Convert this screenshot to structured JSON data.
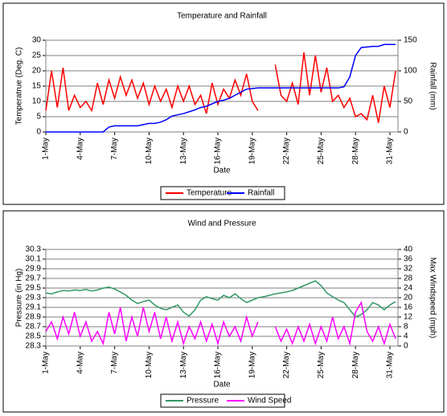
{
  "chart_data": [
    {
      "type": "line",
      "title": "Temperature and Rainfall",
      "x_label": "Date",
      "y_label": "Temperatrue (Deg. C)",
      "y2_label": "Rainfall (mm)",
      "x": [
        1,
        1.5,
        2,
        2.5,
        3,
        3.5,
        4,
        4.5,
        5,
        5.5,
        6,
        6.5,
        7,
        7.5,
        8,
        8.5,
        9,
        9.5,
        10,
        10.5,
        11,
        11.5,
        12,
        12.5,
        13,
        13.5,
        14,
        14.5,
        15,
        15.5,
        16,
        16.5,
        17,
        17.5,
        18,
        18.5,
        19,
        19.5,
        20,
        20.5,
        21,
        21.5,
        22,
        22.5,
        23,
        23.5,
        24,
        24.5,
        25,
        25.5,
        26,
        26.5,
        27,
        27.5,
        28,
        28.5,
        29,
        29.5,
        30,
        30.5,
        31,
        31.5
      ],
      "series": [
        {
          "name": "Temperature",
          "color": "#ff0000",
          "axis": "y",
          "values": [
            7,
            20,
            8,
            21,
            7,
            12,
            8,
            10,
            7,
            16,
            9,
            17,
            11,
            18,
            12,
            17,
            11,
            16,
            9,
            15,
            10,
            14,
            8,
            15,
            10,
            15,
            9,
            12,
            6,
            16,
            9,
            14,
            11,
            17,
            12,
            19,
            10,
            7,
            null,
            null,
            22,
            12,
            10,
            16,
            9,
            26,
            12,
            25,
            13,
            21,
            10,
            12,
            8,
            11,
            5,
            6,
            4,
            12,
            3,
            15,
            8,
            20
          ]
        },
        {
          "name": "Rainfall",
          "color": "#0000ff",
          "axis": "y2",
          "values": [
            0,
            0,
            0,
            0,
            0,
            0,
            0,
            0,
            0,
            0,
            0,
            8,
            10,
            10,
            10,
            10,
            10,
            12,
            14,
            14,
            16,
            20,
            26,
            28,
            30,
            33,
            36,
            40,
            42,
            46,
            50,
            52,
            55,
            60,
            65,
            70,
            71,
            72,
            72,
            72,
            72,
            72,
            72,
            72,
            72,
            72,
            72,
            72,
            72,
            72,
            72,
            72,
            74,
            90,
            125,
            138,
            139,
            140,
            140,
            143,
            143,
            143
          ]
        }
      ],
      "xlim": [
        1,
        31.7
      ],
      "xticks": [
        {
          "value": 1,
          "label": "1-May"
        },
        {
          "value": 4,
          "label": "4-May"
        },
        {
          "value": 7,
          "label": "7-May"
        },
        {
          "value": 10,
          "label": "10-May"
        },
        {
          "value": 13,
          "label": "13-May"
        },
        {
          "value": 16,
          "label": "16-May"
        },
        {
          "value": 19,
          "label": "19-May"
        },
        {
          "value": 22,
          "label": "22-May"
        },
        {
          "value": 25,
          "label": "25-May"
        },
        {
          "value": 28,
          "label": "28-May"
        },
        {
          "value": 31,
          "label": "31-May"
        }
      ],
      "ylim": [
        0,
        30
      ],
      "yticks": [
        0,
        5,
        10,
        15,
        20,
        25,
        30
      ],
      "y2lim": [
        0,
        150
      ],
      "y2ticks": [
        0,
        50,
        100,
        150
      ],
      "grid": true,
      "legend": "bottom"
    },
    {
      "type": "line",
      "title": "Wind and Pressure",
      "x_label": "Date",
      "y_label": "Pressure (in Hg)",
      "y2_label": "Max Windspeed (mph)",
      "x": [
        1,
        1.5,
        2,
        2.5,
        3,
        3.5,
        4,
        4.5,
        5,
        5.5,
        6,
        6.5,
        7,
        7.5,
        8,
        8.5,
        9,
        9.5,
        10,
        10.5,
        11,
        11.5,
        12,
        12.5,
        13,
        13.5,
        14,
        14.5,
        15,
        15.5,
        16,
        16.5,
        17,
        17.5,
        18,
        18.5,
        19,
        19.5,
        20,
        20.5,
        21,
        21.5,
        22,
        22.5,
        23,
        23.5,
        24,
        24.5,
        25,
        25.5,
        26,
        26.5,
        27,
        27.5,
        28,
        28.5,
        29,
        29.5,
        30,
        30.5,
        31,
        31.5
      ],
      "series": [
        {
          "name": "Pressure",
          "color": "#339966",
          "axis": "y",
          "values": [
            29.4,
            29.38,
            29.42,
            29.45,
            29.44,
            29.46,
            29.45,
            29.47,
            29.44,
            29.46,
            29.5,
            29.52,
            29.48,
            29.42,
            29.35,
            29.25,
            29.18,
            29.22,
            29.25,
            29.15,
            29.08,
            29.05,
            29.1,
            29.15,
            29.0,
            28.92,
            29.05,
            29.25,
            29.32,
            29.28,
            29.25,
            29.35,
            29.3,
            29.38,
            29.28,
            29.2,
            29.25,
            29.3,
            29.32,
            29.35,
            29.38,
            29.4,
            29.42,
            29.45,
            29.5,
            29.55,
            29.6,
            29.65,
            29.55,
            29.4,
            29.32,
            29.25,
            29.2,
            29.05,
            28.9,
            28.95,
            29.05,
            29.2,
            29.15,
            29.05,
            29.15,
            29.22
          ]
        },
        {
          "name": "Wind Speed",
          "color": "#ff00ff",
          "axis": "y2",
          "values": [
            6,
            10,
            3,
            12,
            5,
            14,
            4,
            10,
            2,
            6,
            1,
            14,
            5,
            16,
            2,
            12,
            4,
            16,
            6,
            14,
            3,
            12,
            2,
            10,
            1,
            8,
            3,
            10,
            2,
            9,
            1,
            10,
            4,
            8,
            2,
            12,
            4,
            10,
            null,
            null,
            8,
            2,
            7,
            1,
            8,
            2,
            9,
            1,
            8,
            2,
            12,
            3,
            8,
            1,
            14,
            18,
            6,
            2,
            8,
            1,
            9,
            3
          ]
        }
      ],
      "xlim": [
        1,
        31.7
      ],
      "xticks": [
        {
          "value": 1,
          "label": "1-May"
        },
        {
          "value": 4,
          "label": "4-May"
        },
        {
          "value": 7,
          "label": "7-May"
        },
        {
          "value": 10,
          "label": "10-May"
        },
        {
          "value": 13,
          "label": "13-May"
        },
        {
          "value": 16,
          "label": "16-May"
        },
        {
          "value": 19,
          "label": "19-May"
        },
        {
          "value": 22,
          "label": "22-May"
        },
        {
          "value": 25,
          "label": "25-May"
        },
        {
          "value": 28,
          "label": "28-May"
        },
        {
          "value": 31,
          "label": "31-May"
        }
      ],
      "ylim": [
        28.3,
        30.3
      ],
      "yticks": [
        28.3,
        28.5,
        28.7,
        28.9,
        29.1,
        29.3,
        29.5,
        29.7,
        29.9,
        30.1,
        30.3
      ],
      "y2lim": [
        0,
        40
      ],
      "y2ticks": [
        0,
        4,
        8,
        12,
        16,
        20,
        24,
        28,
        32,
        36,
        40
      ],
      "grid": true,
      "legend": "bottom"
    }
  ]
}
